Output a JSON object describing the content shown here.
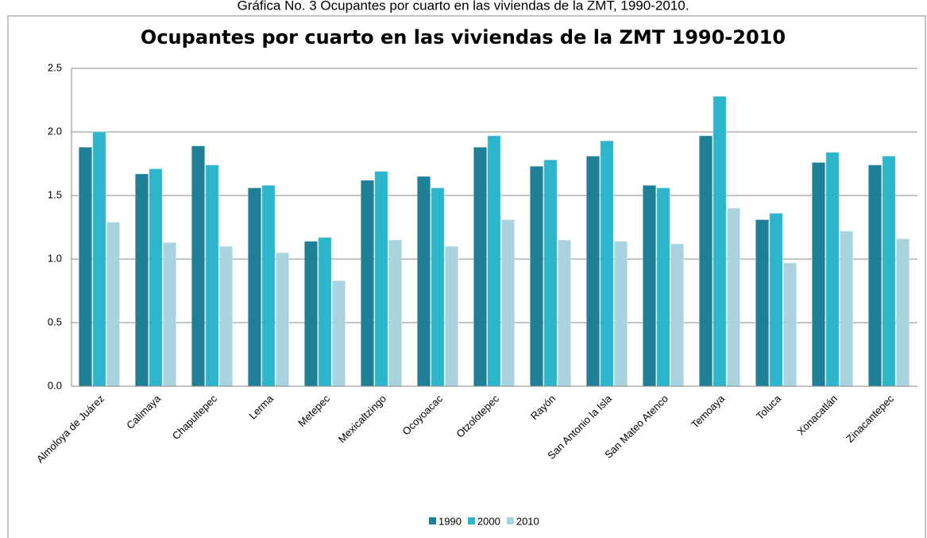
{
  "caption": "Gráfica No. 3 Ocupantes por cuarto en las viviendas de la ZMT, 1990-2010.",
  "chart_data": {
    "type": "bar",
    "title": "Ocupantes por cuarto en las viviendas de la ZMT 1990-2010",
    "categories": [
      "Almoloya de Juárez",
      "Calimaya",
      "Chapultepec",
      "Lerma",
      "Metepec",
      "Mexicaltzingo",
      "Ocoyoacac",
      "Otzolotepec",
      "Rayón",
      "San Antonio la Isla",
      "San Mateo Atenco",
      "Temoaya",
      "Toluca",
      "Xonacatlán",
      "Zinacantepec"
    ],
    "series": [
      {
        "name": "1990",
        "color": "#1f7f96",
        "values": [
          1.88,
          1.67,
          1.89,
          1.56,
          1.14,
          1.62,
          1.65,
          1.88,
          1.73,
          1.81,
          1.58,
          1.97,
          1.31,
          1.76,
          1.74
        ]
      },
      {
        "name": "2000",
        "color": "#2db5cc",
        "values": [
          2.0,
          1.71,
          1.74,
          1.58,
          1.17,
          1.69,
          1.56,
          1.97,
          1.78,
          1.93,
          1.56,
          2.28,
          1.36,
          1.84,
          1.81
        ]
      },
      {
        "name": "2010",
        "color": "#a9d3df",
        "values": [
          1.29,
          1.13,
          1.1,
          1.05,
          0.83,
          1.15,
          1.1,
          1.31,
          1.15,
          1.14,
          1.12,
          1.4,
          0.97,
          1.22,
          1.16
        ]
      }
    ],
    "ylim": [
      0,
      2.5
    ],
    "yticks": [
      {
        "value": 0,
        "label": "0.0"
      },
      0.5,
      {
        "value": 1,
        "label": "1.0"
      },
      {
        "value": 1.5,
        "label": "1.5"
      },
      {
        "value": 2,
        "label": "2.0"
      },
      2.5
    ],
    "grid": true,
    "legend": "bottom"
  }
}
